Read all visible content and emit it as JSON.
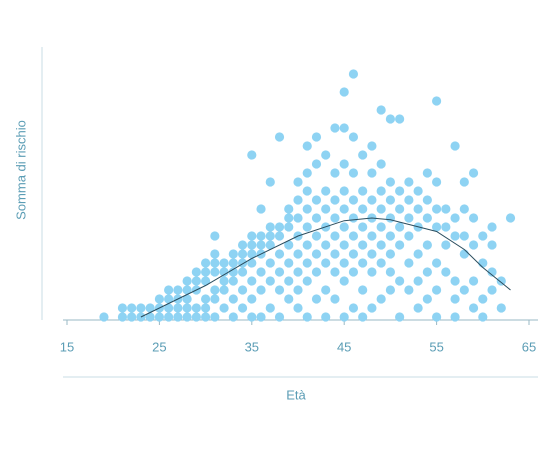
{
  "chart_data": {
    "type": "scatter",
    "x_label": "Età",
    "y_label": "Somma di rischio",
    "xlim": [
      15,
      65
    ],
    "xticks": [
      15,
      25,
      35,
      45,
      55,
      65
    ],
    "ylim": [
      0,
      30
    ],
    "series": [
      {
        "type": "scatter",
        "color": "#8ed3f3",
        "x": [
          19,
          21,
          21,
          22,
          22,
          23,
          23,
          24,
          24,
          25,
          25,
          25,
          26,
          26,
          26,
          26,
          27,
          27,
          27,
          27,
          28,
          28,
          28,
          28,
          28,
          29,
          29,
          29,
          29,
          29,
          30,
          30,
          30,
          30,
          30,
          30,
          31,
          31,
          31,
          31,
          31,
          31,
          31,
          32,
          32,
          32,
          32,
          32,
          33,
          33,
          33,
          33,
          33,
          33,
          34,
          34,
          34,
          34,
          34,
          34,
          35,
          35,
          35,
          35,
          35,
          35,
          35,
          35,
          36,
          36,
          36,
          36,
          36,
          36,
          36,
          37,
          37,
          37,
          37,
          37,
          37,
          37,
          38,
          38,
          38,
          38,
          38,
          38,
          38,
          39,
          39,
          39,
          39,
          39,
          39,
          39,
          40,
          40,
          40,
          40,
          40,
          40,
          40,
          40,
          41,
          41,
          41,
          41,
          41,
          41,
          41,
          41,
          41,
          42,
          42,
          42,
          42,
          42,
          42,
          42,
          42,
          43,
          43,
          43,
          43,
          43,
          43,
          43,
          43,
          44,
          44,
          44,
          44,
          44,
          44,
          44,
          44,
          45,
          45,
          45,
          45,
          45,
          45,
          45,
          45,
          45,
          45,
          46,
          46,
          46,
          46,
          46,
          46,
          46,
          46,
          46,
          47,
          47,
          47,
          47,
          47,
          47,
          47,
          47,
          48,
          48,
          48,
          48,
          48,
          48,
          48,
          48,
          49,
          49,
          49,
          49,
          49,
          49,
          49,
          49,
          50,
          50,
          50,
          50,
          50,
          50,
          50,
          50,
          51,
          51,
          51,
          51,
          51,
          51,
          51,
          52,
          52,
          52,
          52,
          52,
          52,
          53,
          53,
          53,
          53,
          53,
          53,
          54,
          54,
          54,
          54,
          54,
          54,
          55,
          55,
          55,
          55,
          55,
          55,
          55,
          56,
          56,
          56,
          56,
          57,
          57,
          57,
          57,
          57,
          57,
          58,
          58,
          58,
          58,
          58,
          59,
          59,
          59,
          59,
          59,
          60,
          60,
          60,
          60,
          61,
          61,
          61,
          61,
          62,
          62,
          63
        ],
        "y": [
          0,
          0,
          1,
          0,
          1,
          0,
          1,
          0,
          1,
          0,
          1,
          2,
          0,
          1,
          2,
          3,
          0,
          1,
          2,
          3,
          0,
          1,
          2,
          3,
          4,
          0,
          1,
          3,
          4,
          5,
          0,
          1,
          2,
          4,
          5,
          6,
          0,
          2,
          3,
          5,
          6,
          7,
          9,
          1,
          3,
          4,
          5,
          6,
          0,
          2,
          4,
          5,
          6,
          7,
          1,
          3,
          5,
          6,
          7,
          8,
          0,
          2,
          4,
          6,
          7,
          8,
          9,
          18,
          0,
          3,
          5,
          7,
          8,
          9,
          12,
          1,
          4,
          6,
          8,
          9,
          10,
          15,
          0,
          3,
          5,
          7,
          9,
          10,
          20,
          2,
          4,
          6,
          8,
          10,
          11,
          12,
          1,
          3,
          5,
          7,
          9,
          11,
          13,
          15,
          0,
          4,
          6,
          8,
          10,
          12,
          14,
          16,
          19,
          2,
          5,
          7,
          9,
          11,
          13,
          17,
          20,
          0,
          3,
          6,
          8,
          10,
          12,
          14,
          18,
          2,
          5,
          7,
          9,
          11,
          13,
          16,
          21,
          0,
          4,
          6,
          8,
          10,
          12,
          14,
          17,
          21,
          25,
          1,
          5,
          7,
          9,
          11,
          13,
          16,
          20,
          27,
          0,
          3,
          6,
          8,
          10,
          12,
          14,
          18,
          1,
          5,
          7,
          9,
          11,
          13,
          16,
          19,
          2,
          6,
          8,
          10,
          12,
          14,
          17,
          23,
          3,
          5,
          7,
          9,
          11,
          13,
          15,
          22,
          0,
          4,
          8,
          10,
          12,
          14,
          22,
          3,
          6,
          9,
          11,
          13,
          15,
          1,
          4,
          7,
          10,
          12,
          14,
          2,
          5,
          8,
          11,
          13,
          16,
          0,
          3,
          6,
          10,
          12,
          15,
          24,
          5,
          8,
          10,
          12,
          0,
          2,
          4,
          9,
          11,
          19,
          3,
          7,
          9,
          12,
          15,
          1,
          4,
          8,
          11,
          16,
          0,
          2,
          6,
          9,
          3,
          5,
          8,
          10,
          1,
          4,
          11
        ]
      },
      {
        "type": "line",
        "color": "#2b4d5e",
        "x": [
          23,
          25,
          30,
          35,
          40,
          45,
          48,
          50,
          55,
          58,
          60,
          63
        ],
        "y": [
          0,
          1,
          3.5,
          6.5,
          9,
          10.7,
          11,
          10.8,
          9.5,
          7.5,
          5.5,
          3
        ]
      }
    ]
  }
}
